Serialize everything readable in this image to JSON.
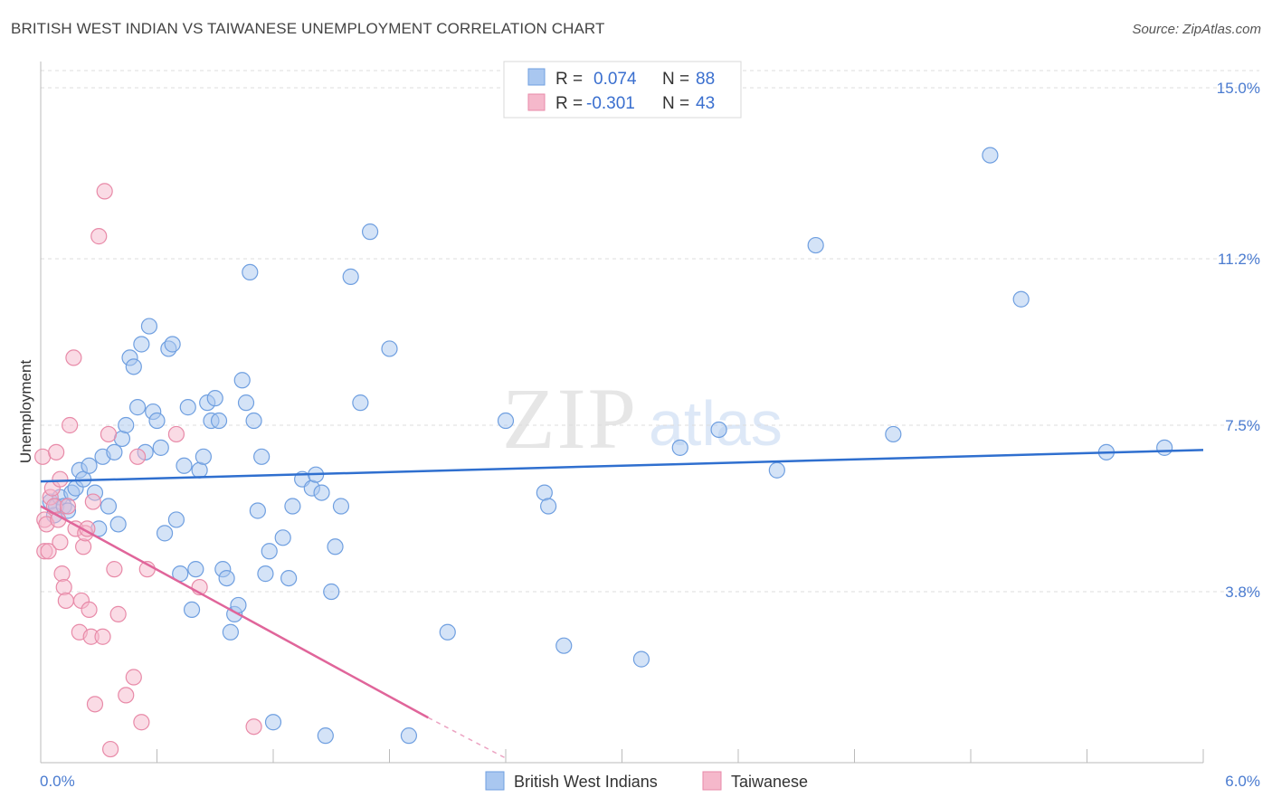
{
  "title": "BRITISH WEST INDIAN VS TAIWANESE UNEMPLOYMENT CORRELATION CHART",
  "source": "Source: ZipAtlas.com",
  "watermark": {
    "zip": "ZIP",
    "atlas": "atlas"
  },
  "colors": {
    "blue_fill": "#a9c7f0",
    "blue_stroke": "#6f9fe0",
    "blue_line": "#2f6fcf",
    "pink_fill": "#f5b8cb",
    "pink_stroke": "#e88aa8",
    "pink_line": "#e0659a",
    "tick_text": "#4a7bd0",
    "grid": "#dcdcdc"
  },
  "legend": {
    "rows": [
      {
        "r_label": "R = ",
        "r_value": "0.074",
        "n_label": "N = ",
        "n_value": "88"
      },
      {
        "r_label": "R = ",
        "r_value": "-0.301",
        "n_label": "N = ",
        "n_value": "43"
      }
    ]
  },
  "chart_data": {
    "type": "scatter",
    "title": "BRITISH WEST INDIAN VS TAIWANESE UNEMPLOYMENT CORRELATION CHART",
    "xlabel": "",
    "ylabel": "Unemployment",
    "xlim": [
      0.0,
      6.0
    ],
    "ylim": [
      0.0,
      15.0
    ],
    "x_tick_labels": [
      "0.0%",
      "6.0%"
    ],
    "y_ticks": [
      3.8,
      7.5,
      11.2,
      15.0
    ],
    "y_tick_labels": [
      "3.8%",
      "7.5%",
      "11.2%",
      "15.0%"
    ],
    "grid": true,
    "series": [
      {
        "name": "British West Indians",
        "color": "#a9c7f0",
        "trend": {
          "x": [
            0.0,
            6.0
          ],
          "y": [
            6.25,
            6.95
          ]
        },
        "points": [
          [
            0.05,
            5.8
          ],
          [
            0.07,
            5.5
          ],
          [
            0.08,
            5.7
          ],
          [
            0.1,
            5.9
          ],
          [
            0.12,
            5.7
          ],
          [
            0.14,
            5.6
          ],
          [
            0.16,
            6.0
          ],
          [
            0.18,
            6.1
          ],
          [
            0.2,
            6.5
          ],
          [
            0.22,
            6.3
          ],
          [
            0.25,
            6.6
          ],
          [
            0.28,
            6.0
          ],
          [
            0.3,
            5.2
          ],
          [
            0.32,
            6.8
          ],
          [
            0.35,
            5.7
          ],
          [
            0.38,
            6.9
          ],
          [
            0.4,
            5.3
          ],
          [
            0.42,
            7.2
          ],
          [
            0.44,
            7.5
          ],
          [
            0.46,
            9.0
          ],
          [
            0.48,
            8.8
          ],
          [
            0.5,
            7.9
          ],
          [
            0.52,
            9.3
          ],
          [
            0.54,
            6.9
          ],
          [
            0.56,
            9.7
          ],
          [
            0.58,
            7.8
          ],
          [
            0.6,
            7.6
          ],
          [
            0.62,
            7.0
          ],
          [
            0.64,
            5.1
          ],
          [
            0.66,
            9.2
          ],
          [
            0.68,
            9.3
          ],
          [
            0.7,
            5.4
          ],
          [
            0.72,
            4.2
          ],
          [
            0.74,
            6.6
          ],
          [
            0.76,
            7.9
          ],
          [
            0.78,
            3.4
          ],
          [
            0.8,
            4.3
          ],
          [
            0.82,
            6.5
          ],
          [
            0.84,
            6.8
          ],
          [
            0.86,
            8.0
          ],
          [
            0.88,
            7.6
          ],
          [
            0.9,
            8.1
          ],
          [
            0.92,
            7.6
          ],
          [
            0.94,
            4.3
          ],
          [
            0.96,
            4.1
          ],
          [
            0.98,
            2.9
          ],
          [
            1.0,
            3.3
          ],
          [
            1.02,
            3.5
          ],
          [
            1.04,
            8.5
          ],
          [
            1.06,
            8.0
          ],
          [
            1.08,
            10.9
          ],
          [
            1.1,
            7.6
          ],
          [
            1.12,
            5.6
          ],
          [
            1.14,
            6.8
          ],
          [
            1.16,
            4.2
          ],
          [
            1.18,
            4.7
          ],
          [
            1.2,
            0.9
          ],
          [
            1.25,
            5.0
          ],
          [
            1.28,
            4.1
          ],
          [
            1.3,
            5.7
          ],
          [
            1.35,
            6.3
          ],
          [
            1.4,
            6.1
          ],
          [
            1.42,
            6.4
          ],
          [
            1.45,
            6.0
          ],
          [
            1.5,
            3.8
          ],
          [
            1.52,
            4.8
          ],
          [
            1.55,
            5.7
          ],
          [
            1.6,
            10.8
          ],
          [
            1.65,
            8.0
          ],
          [
            1.7,
            11.8
          ],
          [
            1.8,
            9.2
          ],
          [
            1.9,
            0.6
          ],
          [
            2.1,
            2.9
          ],
          [
            2.4,
            7.6
          ],
          [
            2.6,
            6.0
          ],
          [
            2.62,
            5.7
          ],
          [
            2.7,
            2.6
          ],
          [
            3.1,
            2.3
          ],
          [
            3.3,
            7.0
          ],
          [
            3.5,
            7.4
          ],
          [
            3.8,
            6.5
          ],
          [
            4.0,
            11.5
          ],
          [
            4.4,
            7.3
          ],
          [
            4.9,
            13.5
          ],
          [
            5.06,
            10.3
          ],
          [
            5.5,
            6.9
          ],
          [
            5.8,
            7.0
          ],
          [
            1.47,
            0.6
          ]
        ]
      },
      {
        "name": "Taiwanese",
        "color": "#f5b8cb",
        "trend": {
          "x": [
            0.0,
            2.0
          ],
          "y": [
            5.7,
            1.0
          ]
        },
        "trend_dashed": {
          "x": [
            2.0,
            2.4
          ],
          "y": [
            1.0,
            0.1
          ]
        },
        "points": [
          [
            0.01,
            6.8
          ],
          [
            0.02,
            5.4
          ],
          [
            0.02,
            4.7
          ],
          [
            0.03,
            5.3
          ],
          [
            0.04,
            4.7
          ],
          [
            0.05,
            5.9
          ],
          [
            0.06,
            6.1
          ],
          [
            0.07,
            5.7
          ],
          [
            0.08,
            6.9
          ],
          [
            0.09,
            5.4
          ],
          [
            0.1,
            6.3
          ],
          [
            0.11,
            4.2
          ],
          [
            0.12,
            3.9
          ],
          [
            0.13,
            3.6
          ],
          [
            0.14,
            5.7
          ],
          [
            0.15,
            7.5
          ],
          [
            0.17,
            9.0
          ],
          [
            0.18,
            5.2
          ],
          [
            0.2,
            2.9
          ],
          [
            0.21,
            3.6
          ],
          [
            0.22,
            4.8
          ],
          [
            0.23,
            5.1
          ],
          [
            0.24,
            5.2
          ],
          [
            0.25,
            3.4
          ],
          [
            0.26,
            2.8
          ],
          [
            0.27,
            5.8
          ],
          [
            0.28,
            1.3
          ],
          [
            0.3,
            11.7
          ],
          [
            0.32,
            2.8
          ],
          [
            0.33,
            12.7
          ],
          [
            0.35,
            7.3
          ],
          [
            0.36,
            0.3
          ],
          [
            0.38,
            4.3
          ],
          [
            0.4,
            3.3
          ],
          [
            0.44,
            1.5
          ],
          [
            0.48,
            1.9
          ],
          [
            0.5,
            6.8
          ],
          [
            0.52,
            0.9
          ],
          [
            0.55,
            4.3
          ],
          [
            0.7,
            7.3
          ],
          [
            0.82,
            3.9
          ],
          [
            1.1,
            0.8
          ],
          [
            0.1,
            4.9
          ]
        ]
      }
    ]
  },
  "bottom_legend": [
    "British West Indians",
    "Taiwanese"
  ]
}
